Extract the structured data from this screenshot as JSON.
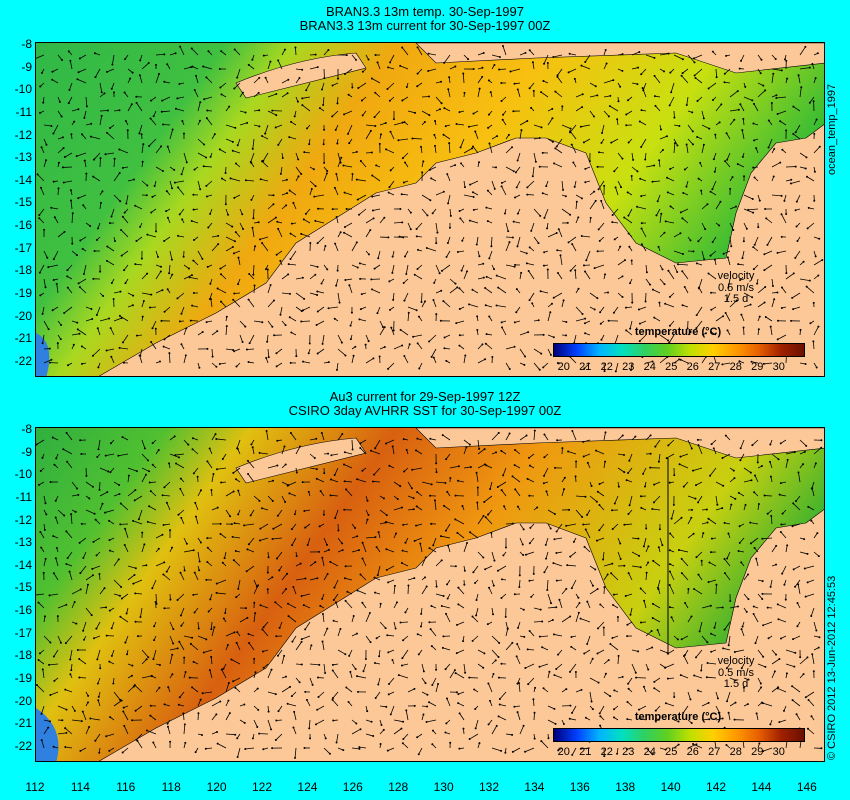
{
  "top_panel": {
    "title_line1": "BRAN3.3 13m temp. 30-Sep-1997",
    "title_line2": "BRAN3.3 13m current for 30-Sep-1997 00Z",
    "side_label": "ocean_temp_1997",
    "velocity_label": "velocity",
    "velocity_scale": "0.5 m/s",
    "velocity_time": "1.5 d",
    "colorbar_title": "temperature (°C)"
  },
  "bottom_panel": {
    "title_line1": "Au3 current for 29-Sep-1997 12Z",
    "title_line2": "CSIRO 3day AVHRR SST for 30-Sep-1997 00Z",
    "side_label": "© CSIRO 2012  13-Jun-2012 12:45:53",
    "velocity_label": "velocity",
    "velocity_scale": "0.5 m/s",
    "velocity_time": "1.5 d",
    "colorbar_title": "temperature (°C)"
  },
  "y_ticks": [
    "-8",
    "-9",
    "-10",
    "-11",
    "-12",
    "-13",
    "-14",
    "-15",
    "-16",
    "-17",
    "-18",
    "-19",
    "-20",
    "-21",
    "-22"
  ],
  "x_ticks": [
    "112",
    "114",
    "116",
    "118",
    "120",
    "122",
    "124",
    "126",
    "128",
    "130",
    "132",
    "134",
    "136",
    "138",
    "140",
    "142",
    "144",
    "146"
  ],
  "colorbar_ticks": [
    "20",
    "21",
    "22",
    "23",
    "24",
    "25",
    "26",
    "27",
    "28",
    "29",
    "30"
  ],
  "colors": {
    "background": "#00ffff",
    "land": "#fcc898",
    "sea_cool": "#30c040",
    "sea_warm": "#f0a000"
  }
}
